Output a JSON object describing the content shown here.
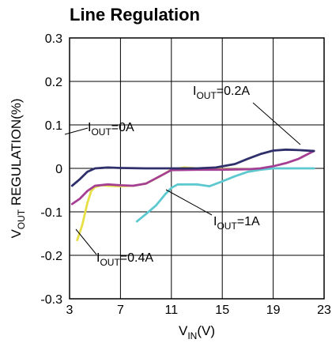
{
  "chart_data": {
    "type": "line",
    "title": "Line Regulation",
    "xlabel": {
      "main": "V",
      "sub": "IN",
      "rest": "(V)"
    },
    "ylabel": {
      "main": "V",
      "sub": "OUT",
      "rest": " REGULATION(%)"
    },
    "xlim": [
      3,
      23
    ],
    "ylim": [
      -0.3,
      0.3
    ],
    "x_ticks": [
      3,
      7,
      11,
      15,
      19,
      23
    ],
    "y_ticks": [
      0.3,
      0.2,
      0.1,
      0,
      -0.1,
      -0.2,
      -0.3
    ],
    "x_tick_labels": [
      "3",
      "7",
      "11",
      "15",
      "19",
      "23"
    ],
    "y_tick_labels": [
      "0.3",
      "0.2",
      "0.1",
      "0",
      "-0.1",
      "-0.2",
      "-0.3"
    ],
    "grid": true,
    "series": [
      {
        "name": "IOUT=0A",
        "color": "#2e2f6b",
        "x": [
          3.2,
          3.8,
          4.4,
          5.0,
          6.0,
          7.0,
          9.0,
          11.0,
          13.0,
          14.5,
          16.0,
          17.0,
          18.0,
          19.0,
          20.0,
          21.0,
          22.2
        ],
        "y": [
          -0.04,
          -0.025,
          -0.008,
          0.0,
          0.002,
          0.001,
          0.0,
          0.0,
          0.0,
          0.002,
          0.01,
          0.022,
          0.033,
          0.041,
          0.043,
          0.042,
          0.04
        ]
      },
      {
        "name": "IOUT=0.2A",
        "color": "#a53f94",
        "x": [
          3.2,
          3.8,
          4.4,
          5.0,
          6.0,
          7.0,
          8.0,
          9.0,
          11.0,
          13.0,
          15.0,
          17.0,
          18.0,
          19.0,
          20.0,
          21.0,
          22.2
        ],
        "y": [
          -0.082,
          -0.07,
          -0.052,
          -0.04,
          -0.037,
          -0.039,
          -0.04,
          -0.035,
          -0.004,
          -0.003,
          -0.003,
          -0.002,
          0.0,
          0.005,
          0.012,
          0.022,
          0.04
        ]
      },
      {
        "name": "IOUT=0.4A",
        "color": "#e6e046",
        "x": [
          3.6,
          4.0,
          4.4,
          4.7,
          5.0,
          5.5,
          6.0,
          7.0,
          8.0,
          9.0,
          10.0,
          11.0,
          12.0,
          13.0,
          15.0,
          17.0,
          19.0
        ],
        "y": [
          -0.165,
          -0.13,
          -0.08,
          -0.052,
          -0.043,
          -0.039,
          -0.04,
          -0.041,
          -0.04,
          -0.035,
          -0.02,
          -0.003,
          0.002,
          0.0,
          -0.002,
          -0.002,
          0.0
        ]
      },
      {
        "name": "IOUT=1A",
        "color": "#5cc8cf",
        "x": [
          8.3,
          9.0,
          9.8,
          10.5,
          11.0,
          11.5,
          12.0,
          13.0,
          14.0,
          15.0,
          16.0,
          17.0,
          18.0,
          19.0,
          20.0,
          21.0,
          22.2
        ],
        "y": [
          -0.122,
          -0.105,
          -0.085,
          -0.06,
          -0.045,
          -0.037,
          -0.037,
          -0.037,
          -0.041,
          -0.03,
          -0.018,
          -0.008,
          -0.003,
          0.0,
          0.0,
          0.0,
          0.0
        ]
      }
    ],
    "annotations": [
      {
        "series": 0,
        "main": "I",
        "sub": "OUT",
        "rest": "=0A"
      },
      {
        "series": 1,
        "main": "I",
        "sub": "OUT",
        "rest": "=0.2A"
      },
      {
        "series": 2,
        "main": "I",
        "sub": "OUT",
        "rest": "=0.4A"
      },
      {
        "series": 3,
        "main": "I",
        "sub": "OUT",
        "rest": "=1A"
      }
    ]
  }
}
